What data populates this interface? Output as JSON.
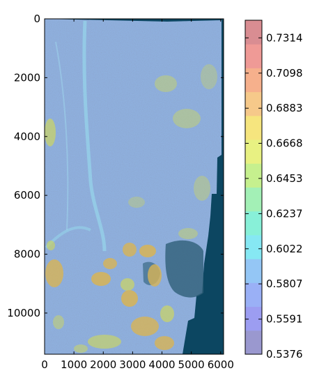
{
  "chart_data": {
    "type": "heatmap",
    "title": "",
    "xlabel": "",
    "ylabel": "",
    "xlim": [
      0,
      6100
    ],
    "ylim": [
      11400,
      0
    ],
    "x_ticks": [
      0,
      1000,
      2000,
      3000,
      4000,
      5000,
      6000
    ],
    "x_tick_labels": [
      "0",
      "1000",
      "2000",
      "3000",
      "4000",
      "5000",
      "6000"
    ],
    "y_ticks": [
      0,
      2000,
      4000,
      6000,
      8000,
      10000
    ],
    "y_tick_labels": [
      "0",
      "2000",
      "4000",
      "6000",
      "8000",
      "10000"
    ],
    "colorbar": {
      "min": 0.5376,
      "max": 0.7422,
      "ticks": [
        0.5376,
        0.5591,
        0.5807,
        0.6022,
        0.6237,
        0.6453,
        0.6668,
        0.6883,
        0.7098,
        0.7314
      ],
      "tick_labels": [
        "0.5376",
        "0.5591",
        "0.5807",
        "0.6022",
        "0.6237",
        "0.6453",
        "0.6668",
        "0.6883",
        "0.7098",
        "0.7314"
      ],
      "colors": [
        "#9a98cf",
        "#9c9df1",
        "#9ab0f6",
        "#94c6f5",
        "#86e8f3",
        "#88f0d8",
        "#a3f0b6",
        "#c6f08e",
        "#e8f182",
        "#f6e57e",
        "#f6c98a",
        "#f6b08c",
        "#ef9a96",
        "#d98d92"
      ]
    },
    "colors": {
      "base_field": "#8fb0de",
      "background_fill": "#0c4661",
      "hot_spot": "#d8b455",
      "warm_spot": "#c8d36a",
      "river": "#8fd4ea"
    }
  }
}
